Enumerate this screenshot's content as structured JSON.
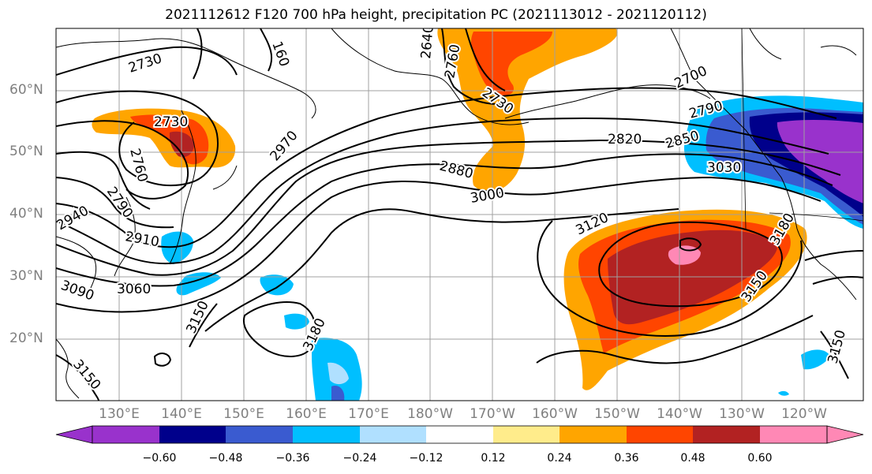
{
  "title": "2021112612 F120 700 hPa height, precipitation PC (2021113012 - 2021120112)",
  "lat_labels": [
    "60°N",
    "50°N",
    "40°N",
    "30°N",
    "20°N"
  ],
  "lon_labels": [
    "130°E",
    "140°E",
    "150°E",
    "160°E",
    "170°E",
    "180°W",
    "170°W",
    "160°W",
    "150°W",
    "140°W",
    "130°W",
    "120°W"
  ],
  "contour_labels": [
    "2730",
    "160",
    "2640",
    "2760",
    "2730",
    "2730",
    "2700",
    "2760",
    "2790",
    "2820",
    "2850",
    "2880",
    "3000",
    "2970",
    "3030",
    "2790",
    "2940",
    "2910",
    "3060",
    "3090",
    "3120",
    "3180",
    "3150",
    "3150",
    "3150",
    "3150",
    "3180"
  ],
  "colorbar": {
    "ticks": [
      "−0.60",
      "−0.48",
      "−0.36",
      "−0.24",
      "−0.12",
      "0.12",
      "0.24",
      "0.36",
      "0.48",
      "0.60"
    ],
    "colors": [
      "#9932CC",
      "#00008B",
      "#3A5BD0",
      "#00BFFF",
      "#B0E0FF",
      "#FFFFFF",
      "#FFEC8B",
      "#FFA500",
      "#FF4500",
      "#B22222",
      "#FF88B5"
    ]
  }
}
